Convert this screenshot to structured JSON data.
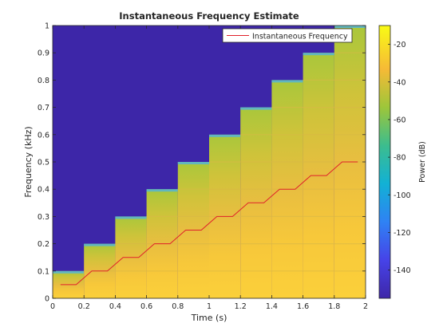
{
  "chart_data": {
    "type": "heatmap",
    "title": "Instantaneous Frequency Estimate",
    "xlabel": "Time (s)",
    "ylabel": "Frequency (kHz)",
    "xlim": [
      0,
      2
    ],
    "ylim": [
      0,
      1
    ],
    "x_ticks": [
      "0",
      "0.2",
      "0.4",
      "0.6",
      "0.8",
      "1",
      "1.2",
      "1.4",
      "1.6",
      "1.8",
      "2"
    ],
    "y_ticks": [
      "0",
      "0.1",
      "0.2",
      "0.3",
      "0.4",
      "0.5",
      "0.6",
      "0.7",
      "0.8",
      "0.9",
      "1"
    ],
    "colorbar": {
      "label": "Power (dB)",
      "range": [
        -155,
        -10
      ],
      "ticks": [
        "-20",
        "-40",
        "-60",
        "-80",
        "-100",
        "-120",
        "-140"
      ],
      "tick_values": [
        -20,
        -40,
        -60,
        -80,
        -100,
        -120,
        -140
      ]
    },
    "legend": {
      "position": "top-right",
      "entries": [
        {
          "name": "Instantaneous Frequency",
          "color": "#e0202a"
        }
      ]
    },
    "spectrogram_steps": [
      {
        "t_start": 0.0,
        "t_end": 0.2,
        "f_top": 0.1
      },
      {
        "t_start": 0.2,
        "t_end": 0.4,
        "f_top": 0.2
      },
      {
        "t_start": 0.4,
        "t_end": 0.6,
        "f_top": 0.3
      },
      {
        "t_start": 0.6,
        "t_end": 0.8,
        "f_top": 0.4
      },
      {
        "t_start": 0.8,
        "t_end": 1.0,
        "f_top": 0.5
      },
      {
        "t_start": 1.0,
        "t_end": 1.2,
        "f_top": 0.6
      },
      {
        "t_start": 1.2,
        "t_end": 1.4,
        "f_top": 0.7
      },
      {
        "t_start": 1.4,
        "t_end": 1.6,
        "f_top": 0.8
      },
      {
        "t_start": 1.6,
        "t_end": 1.8,
        "f_top": 0.9
      },
      {
        "t_start": 1.8,
        "t_end": 2.0,
        "f_top": 1.0
      }
    ],
    "series": [
      {
        "name": "Instantaneous Frequency",
        "x": [
          0.05,
          0.15,
          0.25,
          0.35,
          0.45,
          0.55,
          0.65,
          0.75,
          0.85,
          0.95,
          1.05,
          1.15,
          1.25,
          1.35,
          1.45,
          1.55,
          1.65,
          1.75,
          1.85,
          1.95
        ],
        "y": [
          0.05,
          0.05,
          0.1,
          0.1,
          0.15,
          0.15,
          0.2,
          0.2,
          0.25,
          0.25,
          0.3,
          0.3,
          0.35,
          0.35,
          0.4,
          0.4,
          0.45,
          0.45,
          0.5,
          0.5
        ]
      }
    ],
    "colors": {
      "background_low": "#3d26a8",
      "band_high": "#f9c932",
      "line": "#e0202a"
    }
  }
}
